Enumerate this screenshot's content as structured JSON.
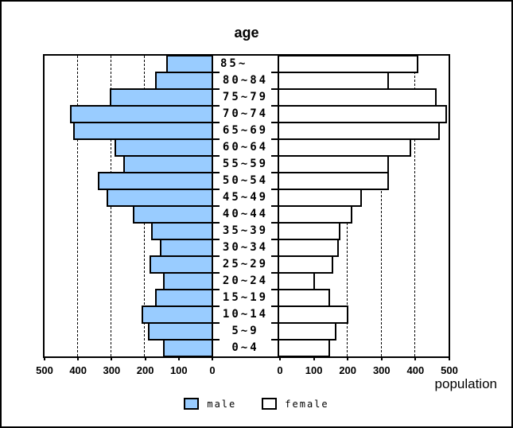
{
  "title": "age",
  "axis": {
    "xlabel": "population",
    "left_tick_labels": [
      "500",
      "400",
      "300",
      "200",
      "100",
      "0"
    ],
    "right_tick_labels": [
      "0",
      "100",
      "200",
      "300",
      "400",
      "500"
    ],
    "max": 500
  },
  "legend": {
    "male_label": "male",
    "female_label": "female"
  },
  "colors": {
    "male_fill": "#99CCFF",
    "female_fill": "#FFFFFF",
    "line": "#000000"
  },
  "chart_data": {
    "type": "bar",
    "variant": "population-pyramid",
    "title": "age",
    "xlabel": "population",
    "xlim": [
      0,
      500
    ],
    "gridlines": [
      100,
      200,
      300,
      400
    ],
    "grid_style": "dashed",
    "legend_position": "bottom",
    "categories": [
      "85~",
      "80~84",
      "75~79",
      "70~74",
      "65~69",
      "60~64",
      "55~59",
      "50~54",
      "45~49",
      "40~44",
      "35~39",
      "30~34",
      "25~29",
      "20~24",
      "15~19",
      "10~14",
      "5~9",
      "0~4"
    ],
    "series": [
      {
        "name": "male",
        "side": "left",
        "values": [
          135,
          170,
          305,
          425,
          415,
          290,
          265,
          340,
          315,
          235,
          180,
          155,
          185,
          145,
          170,
          210,
          190,
          145
        ]
      },
      {
        "name": "female",
        "side": "right",
        "values": [
          410,
          325,
          465,
          495,
          475,
          390,
          325,
          325,
          245,
          215,
          180,
          175,
          160,
          105,
          150,
          205,
          170,
          150
        ]
      }
    ]
  }
}
